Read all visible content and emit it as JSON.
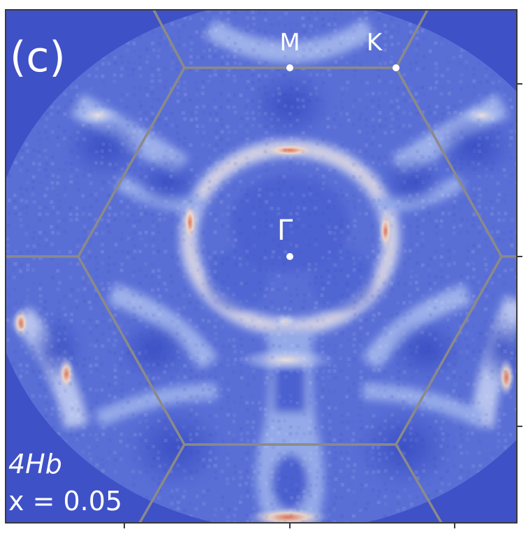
{
  "panel": {
    "panel_label": "(c)",
    "material": "4Hb",
    "doping": "x = 0.05"
  },
  "brillouin_zone": {
    "points": {
      "gamma": "Γ",
      "m": "M",
      "k": "K"
    }
  },
  "colors": {
    "background": "#3f51c6",
    "low_intensity": "#4a5fd0",
    "mid_intensity": "#9fb4ec",
    "high_intensity": "#f3e1d4",
    "peak_intensity": "#e0704e",
    "zone_boundary": "#8a8a8a",
    "frame": "#3a3a3a",
    "text": "#ffffff"
  }
}
